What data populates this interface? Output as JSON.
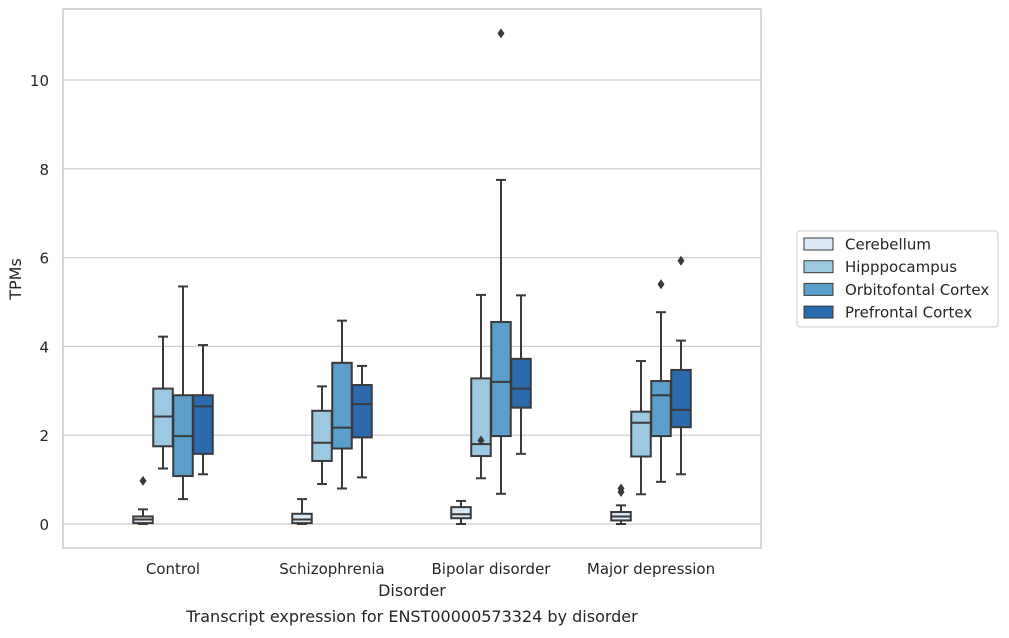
{
  "caption": "Transcript expression for ENST00000573324 by disorder",
  "chart_data": {
    "type": "boxplot",
    "xlabel": "Disorder",
    "ylabel": "TPMs",
    "ylim": [
      -0.5,
      11.6
    ],
    "yticks": [
      0,
      2,
      4,
      6,
      8,
      10
    ],
    "grid": "horizontal",
    "legend_position": "right",
    "categories": [
      "Control",
      "Schizophrenia",
      "Bipolar disorder",
      "Major depression"
    ],
    "series": [
      {
        "name": "Cerebellum",
        "color": "#dbe9f6",
        "boxes": [
          {
            "whisker_low": 0.0,
            "q1": 0.02,
            "median": 0.1,
            "q3": 0.17,
            "whisker_high": 0.33,
            "outliers": [
              0.97
            ]
          },
          {
            "whisker_low": 0.0,
            "q1": 0.02,
            "median": 0.1,
            "q3": 0.23,
            "whisker_high": 0.56,
            "outliers": []
          },
          {
            "whisker_low": 0.0,
            "q1": 0.13,
            "median": 0.22,
            "q3": 0.38,
            "whisker_high": 0.52,
            "outliers": []
          },
          {
            "whisker_low": 0.0,
            "q1": 0.08,
            "median": 0.17,
            "q3": 0.27,
            "whisker_high": 0.42,
            "outliers": [
              0.72,
              0.8
            ]
          }
        ]
      },
      {
        "name": "Hipppocampus",
        "color": "#9cc9e1",
        "boxes": [
          {
            "whisker_low": 1.25,
            "q1": 1.75,
            "median": 2.42,
            "q3": 3.05,
            "whisker_high": 4.22,
            "outliers": []
          },
          {
            "whisker_low": 0.9,
            "q1": 1.42,
            "median": 1.83,
            "q3": 2.55,
            "whisker_high": 3.1,
            "outliers": []
          },
          {
            "whisker_low": 1.03,
            "q1": 1.53,
            "median": 1.8,
            "q3": 3.28,
            "whisker_high": 5.16,
            "outliers": [
              1.88
            ]
          },
          {
            "whisker_low": 0.67,
            "q1": 1.52,
            "median": 2.28,
            "q3": 2.53,
            "whisker_high": 3.67,
            "outliers": []
          }
        ]
      },
      {
        "name": "Orbitofontal Cortex",
        "color": "#5a9ec9",
        "boxes": [
          {
            "whisker_low": 0.56,
            "q1": 1.08,
            "median": 1.98,
            "q3": 2.9,
            "whisker_high": 5.35,
            "outliers": []
          },
          {
            "whisker_low": 0.8,
            "q1": 1.7,
            "median": 2.17,
            "q3": 3.63,
            "whisker_high": 4.58,
            "outliers": []
          },
          {
            "whisker_low": 0.68,
            "q1": 1.98,
            "median": 3.2,
            "q3": 4.55,
            "whisker_high": 7.75,
            "outliers": [
              11.05
            ]
          },
          {
            "whisker_low": 0.95,
            "q1": 1.98,
            "median": 2.9,
            "q3": 3.22,
            "whisker_high": 4.77,
            "outliers": [
              5.4
            ]
          }
        ]
      },
      {
        "name": "Prefrontal Cortex",
        "color": "#2a6aad",
        "boxes": [
          {
            "whisker_low": 1.12,
            "q1": 1.58,
            "median": 2.65,
            "q3": 2.9,
            "whisker_high": 4.03,
            "outliers": []
          },
          {
            "whisker_low": 1.05,
            "q1": 1.95,
            "median": 2.7,
            "q3": 3.13,
            "whisker_high": 3.56,
            "outliers": []
          },
          {
            "whisker_low": 1.58,
            "q1": 2.62,
            "median": 3.05,
            "q3": 3.72,
            "whisker_high": 5.15,
            "outliers": []
          },
          {
            "whisker_low": 1.12,
            "q1": 2.18,
            "median": 2.57,
            "q3": 3.47,
            "whisker_high": 4.13,
            "outliers": [
              5.93
            ]
          }
        ]
      }
    ]
  }
}
